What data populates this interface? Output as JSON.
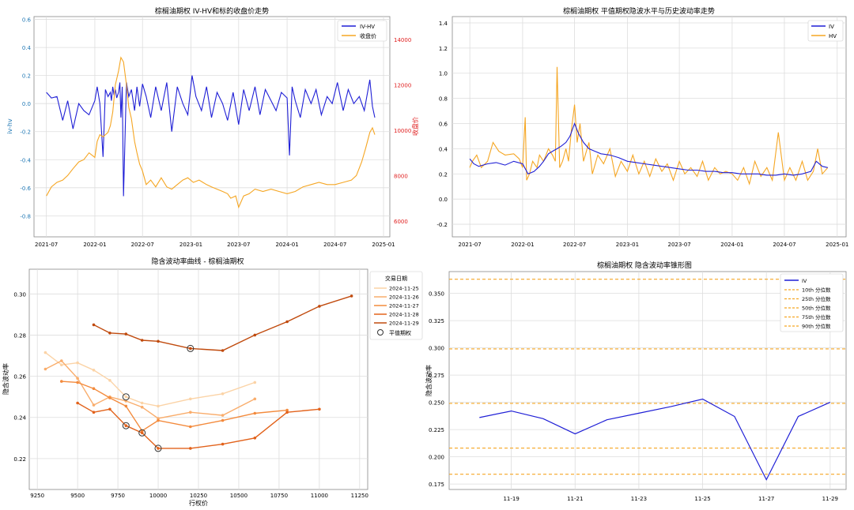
{
  "charts": {
    "c1": {
      "title": "棕榈油期权 IV-HV和标的收盘价走势",
      "ylabel_left": "iv-hv",
      "ylabel_right": "收盘价",
      "legend": [
        "IV-HV",
        "收盘价"
      ]
    },
    "c2": {
      "title": "棕榈油期权 平值期权隐波水平与历史波动率走势",
      "legend": [
        "IV",
        "HV"
      ]
    },
    "c3": {
      "title": "隐含波动率曲线 - 棕榈油期权",
      "xlabel": "行权价",
      "ylabel": "隐含波动率",
      "legend_title": "交易日期",
      "atm_label": "平值期权"
    },
    "c4": {
      "title": "棕榈油期权 隐含波动率锥形图",
      "ylabel": "隐含波动率"
    }
  },
  "chart_data": [
    {
      "type": "line",
      "title": "棕榈油期权 IV-HV和标的收盘价走势",
      "xlabel": "",
      "ylabel": "iv-hv",
      "ylabel_right": "收盘价",
      "x_ticks": [
        "2021-07",
        "2022-01",
        "2022-07",
        "2023-01",
        "2023-07",
        "2024-01",
        "2024-07",
        "2025-01"
      ],
      "ylim": [
        -0.95,
        0.62
      ],
      "ylim_right": [
        5300,
        15000
      ],
      "y_ticks": [
        -0.8,
        -0.6,
        -0.4,
        -0.2,
        0.0,
        0.2,
        0.4,
        0.6
      ],
      "y_ticks_right": [
        6000,
        8000,
        10000,
        12000,
        14000
      ],
      "legend_position": "top-right",
      "grid": true,
      "colors": {
        "IV-HV": "#1f1fd6",
        "收盘价": "#f5a623",
        "right_axis": "#e02020",
        "left_axis": "#1f77b4"
      },
      "series": [
        {
          "name": "IV-HV",
          "axis": "left",
          "x": [
            "2021-07-01",
            "2021-07-20",
            "2021-08-10",
            "2021-09-01",
            "2021-09-20",
            "2021-10-10",
            "2021-11-01",
            "2021-11-20",
            "2021-12-10",
            "2022-01-01",
            "2022-01-10",
            "2022-01-20",
            "2022-02-01",
            "2022-02-10",
            "2022-02-20",
            "2022-03-01",
            "2022-03-05",
            "2022-03-10",
            "2022-03-15",
            "2022-03-20",
            "2022-03-25",
            "2022-04-01",
            "2022-04-06",
            "2022-04-10",
            "2022-04-15",
            "2022-04-20",
            "2022-05-01",
            "2022-05-10",
            "2022-05-20",
            "2022-06-01",
            "2022-06-10",
            "2022-06-20",
            "2022-07-01",
            "2022-07-15",
            "2022-08-01",
            "2022-08-20",
            "2022-09-10",
            "2022-10-01",
            "2022-10-20",
            "2022-11-10",
            "2022-12-01",
            "2022-12-20",
            "2023-01-05",
            "2023-01-20",
            "2023-02-10",
            "2023-03-01",
            "2023-03-20",
            "2023-04-10",
            "2023-05-01",
            "2023-05-20",
            "2023-06-10",
            "2023-07-01",
            "2023-07-20",
            "2023-08-10",
            "2023-09-01",
            "2023-09-20",
            "2023-10-10",
            "2023-11-01",
            "2023-11-20",
            "2023-12-10",
            "2024-01-01",
            "2024-01-10",
            "2024-01-20",
            "2024-02-01",
            "2024-02-20",
            "2024-03-10",
            "2024-04-01",
            "2024-04-20",
            "2024-05-10",
            "2024-06-01",
            "2024-06-20",
            "2024-07-10",
            "2024-08-01",
            "2024-08-20",
            "2024-09-10",
            "2024-10-01",
            "2024-10-20",
            "2024-11-10",
            "2024-11-20",
            "2024-11-29"
          ],
          "values": [
            0.08,
            0.04,
            0.05,
            -0.12,
            0.02,
            -0.18,
            0.0,
            -0.05,
            -0.08,
            0.02,
            0.12,
            0.0,
            -0.38,
            0.1,
            0.05,
            0.08,
            0.02,
            0.12,
            0.06,
            0.1,
            0.04,
            0.08,
            0.15,
            -0.1,
            0.12,
            -0.66,
            0.15,
            0.05,
            0.1,
            -0.05,
            0.12,
            -0.02,
            0.14,
            0.05,
            -0.1,
            0.12,
            -0.05,
            0.15,
            -0.2,
            0.12,
            0.0,
            -0.08,
            0.2,
            0.05,
            -0.05,
            0.12,
            -0.1,
            0.08,
            0.0,
            -0.12,
            0.08,
            -0.15,
            0.1,
            -0.05,
            0.12,
            -0.08,
            0.1,
            0.02,
            -0.05,
            0.08,
            0.04,
            -0.37,
            0.12,
            0.02,
            -0.1,
            0.1,
            0.0,
            0.1,
            -0.08,
            0.05,
            0.0,
            0.15,
            -0.05,
            0.1,
            0.0,
            0.05,
            -0.05,
            0.17,
            -0.02,
            -0.1
          ]
        },
        {
          "name": "收盘价",
          "axis": "right",
          "x": [
            "2021-07-01",
            "2021-07-20",
            "2021-08-10",
            "2021-09-01",
            "2021-09-20",
            "2021-10-10",
            "2021-11-01",
            "2021-11-20",
            "2021-12-10",
            "2022-01-01",
            "2022-01-10",
            "2022-01-20",
            "2022-02-01",
            "2022-02-20",
            "2022-03-01",
            "2022-03-10",
            "2022-03-20",
            "2022-04-01",
            "2022-04-10",
            "2022-04-20",
            "2022-05-01",
            "2022-05-10",
            "2022-05-20",
            "2022-06-01",
            "2022-06-10",
            "2022-06-20",
            "2022-07-01",
            "2022-07-15",
            "2022-08-01",
            "2022-08-20",
            "2022-09-10",
            "2022-10-01",
            "2022-10-20",
            "2022-11-10",
            "2022-12-01",
            "2022-12-20",
            "2023-01-10",
            "2023-02-01",
            "2023-03-01",
            "2023-03-20",
            "2023-04-10",
            "2023-05-01",
            "2023-05-20",
            "2023-06-01",
            "2023-06-20",
            "2023-07-01",
            "2023-07-20",
            "2023-08-10",
            "2023-09-01",
            "2023-10-01",
            "2023-11-01",
            "2023-12-01",
            "2024-01-01",
            "2024-02-01",
            "2024-03-01",
            "2024-04-01",
            "2024-05-01",
            "2024-06-01",
            "2024-07-01",
            "2024-08-01",
            "2024-09-01",
            "2024-09-20",
            "2024-10-10",
            "2024-10-25",
            "2024-11-10",
            "2024-11-20",
            "2024-11-29"
          ],
          "values": [
            7100,
            7500,
            7700,
            7800,
            8000,
            8300,
            8600,
            8700,
            9000,
            8800,
            9500,
            9800,
            9700,
            9900,
            10200,
            10800,
            12000,
            12600,
            13200,
            13000,
            12000,
            11000,
            10500,
            9500,
            9000,
            8500,
            8200,
            7600,
            7800,
            7500,
            7900,
            7500,
            7400,
            7600,
            7800,
            7900,
            7700,
            7800,
            7600,
            7500,
            7400,
            7300,
            7200,
            7000,
            7100,
            6600,
            7100,
            7200,
            7400,
            7300,
            7400,
            7300,
            7200,
            7300,
            7500,
            7600,
            7700,
            7600,
            7600,
            7700,
            7800,
            8000,
            8600,
            9200,
            9900,
            10100,
            9800
          ]
        }
      ]
    },
    {
      "type": "line",
      "title": "棕榈油期权 平值期权隐波水平与历史波动率走势",
      "x_ticks": [
        "2021-07",
        "2022-01",
        "2022-07",
        "2023-01",
        "2023-07",
        "2024-01",
        "2024-07",
        "2025-01"
      ],
      "ylim": [
        -0.3,
        1.45
      ],
      "y_ticks": [
        -0.2,
        0.0,
        0.2,
        0.4,
        0.6,
        0.8,
        1.0,
        1.2,
        1.4
      ],
      "legend_position": "top-right",
      "grid": true,
      "colors": {
        "IV": "#1f1fd6",
        "HV": "#f5a623"
      },
      "series": [
        {
          "name": "IV",
          "x": [
            "2021-07-01",
            "2021-07-15",
            "2021-08-01",
            "2021-09-01",
            "2021-10-01",
            "2021-11-01",
            "2021-12-01",
            "2022-01-01",
            "2022-01-20",
            "2022-02-10",
            "2022-03-01",
            "2022-03-15",
            "2022-04-01",
            "2022-04-15",
            "2022-05-01",
            "2022-05-15",
            "2022-06-01",
            "2022-06-15",
            "2022-07-01",
            "2022-07-15",
            "2022-08-01",
            "2022-08-20",
            "2022-09-10",
            "2022-10-01",
            "2022-11-01",
            "2022-12-01",
            "2023-01-01",
            "2023-02-01",
            "2023-03-01",
            "2023-04-01",
            "2023-05-01",
            "2023-06-01",
            "2023-07-01",
            "2023-08-01",
            "2023-09-01",
            "2023-10-01",
            "2023-11-01",
            "2023-12-01",
            "2024-01-01",
            "2024-02-01",
            "2024-03-01",
            "2024-04-01",
            "2024-05-01",
            "2024-06-01",
            "2024-07-01",
            "2024-08-01",
            "2024-09-01",
            "2024-10-01",
            "2024-10-20",
            "2024-11-10",
            "2024-11-29"
          ],
          "values": [
            0.32,
            0.28,
            0.26,
            0.28,
            0.29,
            0.27,
            0.3,
            0.28,
            0.2,
            0.22,
            0.26,
            0.3,
            0.36,
            0.38,
            0.4,
            0.42,
            0.45,
            0.5,
            0.6,
            0.52,
            0.45,
            0.4,
            0.38,
            0.36,
            0.35,
            0.33,
            0.3,
            0.29,
            0.28,
            0.27,
            0.26,
            0.25,
            0.24,
            0.23,
            0.23,
            0.22,
            0.22,
            0.21,
            0.21,
            0.2,
            0.2,
            0.2,
            0.19,
            0.19,
            0.2,
            0.19,
            0.2,
            0.22,
            0.3,
            0.26,
            0.25
          ]
        },
        {
          "name": "HV",
          "x": [
            "2021-07-01",
            "2021-07-10",
            "2021-07-25",
            "2021-08-10",
            "2021-09-01",
            "2021-09-20",
            "2021-10-10",
            "2021-11-01",
            "2021-12-01",
            "2021-12-20",
            "2022-01-01",
            "2022-01-10",
            "2022-01-15",
            "2022-01-25",
            "2022-02-05",
            "2022-02-20",
            "2022-03-01",
            "2022-03-15",
            "2022-04-01",
            "2022-04-15",
            "2022-04-25",
            "2022-05-01",
            "2022-05-10",
            "2022-05-20",
            "2022-06-01",
            "2022-06-10",
            "2022-06-20",
            "2022-07-01",
            "2022-07-10",
            "2022-07-20",
            "2022-08-01",
            "2022-08-20",
            "2022-09-01",
            "2022-09-20",
            "2022-10-10",
            "2022-11-01",
            "2022-11-20",
            "2022-12-10",
            "2023-01-01",
            "2023-01-20",
            "2023-02-10",
            "2023-03-01",
            "2023-03-20",
            "2023-04-10",
            "2023-05-01",
            "2023-05-20",
            "2023-06-10",
            "2023-07-01",
            "2023-07-20",
            "2023-08-10",
            "2023-09-01",
            "2023-09-20",
            "2023-10-10",
            "2023-11-01",
            "2023-11-20",
            "2023-12-10",
            "2024-01-01",
            "2024-01-20",
            "2024-02-10",
            "2024-03-01",
            "2024-03-20",
            "2024-04-10",
            "2024-05-01",
            "2024-05-20",
            "2024-06-10",
            "2024-07-01",
            "2024-07-20",
            "2024-08-10",
            "2024-09-01",
            "2024-09-20",
            "2024-10-10",
            "2024-10-25",
            "2024-11-10",
            "2024-11-29"
          ],
          "values": [
            0.25,
            0.3,
            0.35,
            0.25,
            0.3,
            0.45,
            0.38,
            0.35,
            0.36,
            0.32,
            0.25,
            0.65,
            0.15,
            0.2,
            0.3,
            0.25,
            0.35,
            0.3,
            0.4,
            0.35,
            0.3,
            1.05,
            0.25,
            0.3,
            0.4,
            0.3,
            0.55,
            0.75,
            0.45,
            0.6,
            0.3,
            0.45,
            0.2,
            0.35,
            0.28,
            0.4,
            0.18,
            0.3,
            0.22,
            0.35,
            0.2,
            0.3,
            0.18,
            0.32,
            0.22,
            0.28,
            0.15,
            0.3,
            0.2,
            0.25,
            0.18,
            0.3,
            0.15,
            0.25,
            0.2,
            0.22,
            0.2,
            0.15,
            0.25,
            0.12,
            0.3,
            0.18,
            0.25,
            0.15,
            0.53,
            0.15,
            0.25,
            0.15,
            0.3,
            0.15,
            0.22,
            0.4,
            0.2,
            0.25
          ]
        }
      ]
    },
    {
      "type": "line",
      "title": "隐含波动率曲线 - 棕榈油期权",
      "xlabel": "行权价",
      "ylabel": "隐含波动率",
      "xlim": [
        9200,
        11300
      ],
      "ylim": [
        0.205,
        0.312
      ],
      "x_ticks": [
        9250,
        9500,
        9750,
        10000,
        10250,
        10500,
        10750,
        11000,
        11250
      ],
      "y_ticks": [
        0.22,
        0.24,
        0.26,
        0.28,
        0.3
      ],
      "legend_title": "交易日期",
      "legend_position": "top-right",
      "grid": true,
      "series": [
        {
          "name": "2024-11-25",
          "color": "#fbd3a6",
          "x": [
            9300,
            9400,
            9500,
            9600,
            9700,
            9800,
            9900,
            10000,
            10200,
            10400,
            10600
          ],
          "values": [
            0.2715,
            0.2655,
            0.2665,
            0.263,
            0.258,
            0.25,
            0.247,
            0.2455,
            0.249,
            0.2515,
            0.257
          ]
        },
        {
          "name": "2024-11-26",
          "color": "#f9ad6c",
          "x": [
            9300,
            9400,
            9500,
            9600,
            9700,
            9800,
            9900,
            10000,
            10200,
            10400,
            10600
          ],
          "values": [
            0.2635,
            0.2675,
            0.259,
            0.246,
            0.25,
            0.248,
            0.245,
            0.2395,
            0.2425,
            0.241,
            0.249
          ]
        },
        {
          "name": "2024-11-27",
          "color": "#f38a3c",
          "x": [
            9400,
            9500,
            9600,
            9700,
            9800,
            9900,
            10000,
            10200,
            10400,
            10600,
            10800
          ],
          "values": [
            0.2575,
            0.257,
            0.254,
            0.2495,
            0.2455,
            0.2335,
            0.2385,
            0.2355,
            0.2385,
            0.242,
            0.2435
          ]
        },
        {
          "name": "2024-11-28",
          "color": "#e2621b",
          "x": [
            9500,
            9600,
            9700,
            9800,
            9900,
            10000,
            10200,
            10400,
            10600,
            10800,
            11000
          ],
          "values": [
            0.247,
            0.2425,
            0.244,
            0.236,
            0.2325,
            0.225,
            0.225,
            0.227,
            0.23,
            0.2425,
            0.244
          ]
        },
        {
          "name": "2024-11-29",
          "color": "#c04a0d",
          "x": [
            9600,
            9700,
            9800,
            9900,
            10000,
            10200,
            10400,
            10600,
            10800,
            11000,
            11200
          ],
          "values": [
            0.285,
            0.281,
            0.2805,
            0.2775,
            0.277,
            0.2735,
            0.2725,
            0.28,
            0.2865,
            0.294,
            0.299
          ]
        }
      ],
      "atm_points": [
        {
          "x": 9800,
          "y": 0.25
        },
        {
          "x": 9800,
          "y": 0.236
        },
        {
          "x": 9900,
          "y": 0.2325
        },
        {
          "x": 10000,
          "y": 0.225
        },
        {
          "x": 10200,
          "y": 0.2735
        }
      ]
    },
    {
      "type": "line",
      "title": "棕榈油期权 隐含波动率锥形图",
      "xlabel": "",
      "ylabel": "隐含波动率",
      "ylim": [
        0.17,
        0.37
      ],
      "y_ticks": [
        0.175,
        0.2,
        0.225,
        0.25,
        0.275,
        0.3,
        0.325,
        0.35
      ],
      "x_tick_labels": [
        "11-19",
        "11-21",
        "11-23",
        "11-25",
        "11-27",
        "11-29"
      ],
      "legend_position": "top-right",
      "grid": true,
      "series": [
        {
          "name": "IV",
          "color": "#1f1fd6",
          "x": [
            "11-18",
            "11-19",
            "11-20",
            "11-21",
            "11-22",
            "11-23",
            "11-24",
            "11-25",
            "11-26",
            "11-27",
            "11-28",
            "11-29"
          ],
          "values": [
            0.236,
            0.242,
            0.235,
            0.221,
            0.234,
            0.24,
            0.246,
            0.253,
            0.237,
            0.179,
            0.237,
            0.25
          ]
        }
      ],
      "quantiles": [
        {
          "name": "10th 分位数",
          "value": 0.184
        },
        {
          "name": "25th 分位数",
          "value": 0.208
        },
        {
          "name": "50th 分位数",
          "value": 0.249
        },
        {
          "name": "75th 分位数",
          "value": 0.299
        },
        {
          "name": "90th 分位数",
          "value": 0.363
        }
      ],
      "quantile_color": "#f5a623"
    }
  ]
}
